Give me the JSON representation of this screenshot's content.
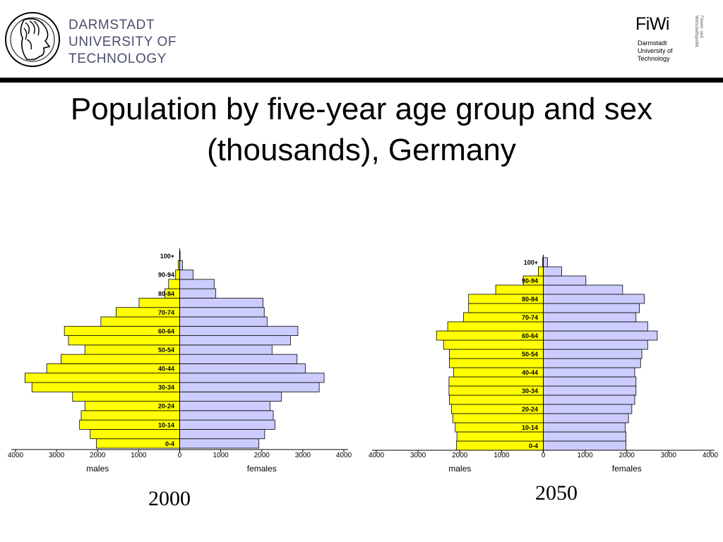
{
  "header": {
    "university_lines": [
      "DARMSTADT",
      "UNIVERSITY OF",
      "TECHNOLOGY"
    ],
    "fiwi": {
      "name": "FiWi",
      "sub_lines": [
        "Darmstadt",
        "University of",
        "Technology"
      ],
      "vertical_lines": [
        "Finanz- und",
        "Wirtschaftspolitik"
      ]
    }
  },
  "title_lines": [
    "Population by five-year age group and sex",
    "(thousands), Germany"
  ],
  "colors": {
    "males": "#ffff00",
    "females": "#ccccff",
    "bar_outline": "#000000",
    "university_text": "#4a4f6c",
    "header_rule": "#000000"
  },
  "chart_data": [
    {
      "type": "bar",
      "subtype": "population-pyramid",
      "year_label": "2000",
      "categories": [
        "0-4",
        "5-9",
        "10-14",
        "15-19",
        "20-24",
        "25-29",
        "30-34",
        "35-39",
        "40-44",
        "45-49",
        "50-54",
        "55-59",
        "60-64",
        "65-69",
        "70-74",
        "75-79",
        "80-84",
        "85-89",
        "90-94",
        "95-99",
        "100+"
      ],
      "category_tick_labels": [
        "0-4",
        "10-14",
        "20-24",
        "30-34",
        "40-44",
        "50-54",
        "60-64",
        "70-74",
        "80-84",
        "90-94",
        "100+"
      ],
      "series": [
        {
          "name": "males",
          "values": [
            2030,
            2180,
            2440,
            2400,
            2310,
            2610,
            3600,
            3770,
            3240,
            2890,
            2310,
            2710,
            2810,
            1920,
            1550,
            990,
            360,
            270,
            100,
            35,
            5
          ]
        },
        {
          "name": "females",
          "values": [
            1930,
            2070,
            2320,
            2280,
            2200,
            2480,
            3400,
            3520,
            3060,
            2860,
            2250,
            2700,
            2880,
            2130,
            2060,
            2030,
            880,
            840,
            330,
            70,
            10
          ]
        }
      ],
      "x_ticks": [
        4000,
        3000,
        2000,
        1000,
        0,
        1000,
        2000,
        3000,
        4000
      ],
      "xlim": [
        -4000,
        4000
      ],
      "xlabel_left": "males",
      "xlabel_right": "females"
    },
    {
      "type": "bar",
      "subtype": "population-pyramid",
      "year_label": "2050",
      "categories": [
        "0-4",
        "5-9",
        "10-14",
        "15-19",
        "20-24",
        "25-29",
        "30-34",
        "35-39",
        "40-44",
        "45-49",
        "50-54",
        "55-59",
        "60-64",
        "65-69",
        "70-74",
        "75-79",
        "80-84",
        "85-89",
        "90-94",
        "95-99",
        "100+"
      ],
      "category_tick_labels": [
        "0-4",
        "10-14",
        "20-24",
        "30-34",
        "40-44",
        "50-54",
        "60-64",
        "70-74",
        "80-84",
        "90-94",
        "100+"
      ],
      "series": [
        {
          "name": "males",
          "values": [
            2080,
            2070,
            2110,
            2170,
            2200,
            2250,
            2260,
            2260,
            2150,
            2250,
            2250,
            2390,
            2560,
            2290,
            1910,
            1790,
            1790,
            1140,
            480,
            120,
            15
          ]
        },
        {
          "name": "females",
          "values": [
            1980,
            1980,
            1960,
            2040,
            2120,
            2190,
            2220,
            2220,
            2190,
            2330,
            2360,
            2500,
            2730,
            2500,
            2220,
            2300,
            2420,
            1900,
            1020,
            440,
            100
          ]
        }
      ],
      "x_ticks": [
        4000,
        3000,
        2000,
        1000,
        0,
        1000,
        2000,
        3000,
        4000
      ],
      "xlim": [
        -4000,
        4000
      ],
      "xlabel_left": "males",
      "xlabel_right": "females"
    }
  ]
}
